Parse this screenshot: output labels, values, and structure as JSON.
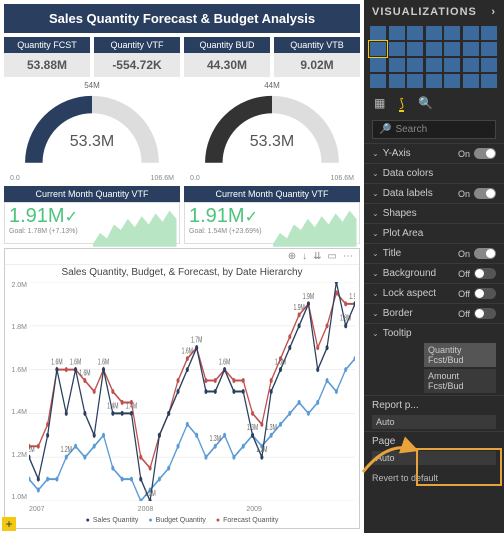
{
  "title": "Sales Quantity Forecast & Budget Analysis",
  "kpis": [
    {
      "label": "Quantity FCST",
      "value": "53.88M"
    },
    {
      "label": "Quantity VTF",
      "value": "-554.72K"
    },
    {
      "label": "Quantity BUD",
      "value": "44.30M"
    },
    {
      "label": "Quantity VTB",
      "value": "9.02M"
    }
  ],
  "gauges": [
    {
      "top": "54M",
      "value": "53.3M",
      "min": "0.0",
      "max": "106.6M",
      "arc_color": "#2a3f5f"
    },
    {
      "top": "44M",
      "value": "53.3M",
      "min": "0.0",
      "max": "106.6M",
      "arc_color": "#333333"
    }
  ],
  "vtf": [
    {
      "head": "Current Month Quantity VTF",
      "value": "1.91M",
      "goal": "Goal: 1.78M (+7.13%)"
    },
    {
      "head": "Current Month Quantity VTF",
      "value": "1.91M",
      "goal": "Goal: 1.54M (+23.69%)"
    }
  ],
  "linechart": {
    "title": "Sales Quantity, Budget, & Forecast, by Date Hierarchy",
    "y_ticks": [
      "2.0M",
      "1.8M",
      "1.6M",
      "1.4M",
      "1.2M",
      "1.0M"
    ],
    "x_ticks": [
      "2007",
      "2008",
      "2009"
    ],
    "ylim": [
      1.0,
      2.0
    ],
    "series": {
      "sales": {
        "color": "#2a3f5f",
        "label": "Sales Quantity",
        "values": [
          1.2,
          1.1,
          1.3,
          1.6,
          1.4,
          1.6,
          1.4,
          1.3,
          1.6,
          1.4,
          1.4,
          1.4,
          1.1,
          1.0,
          1.3,
          1.4,
          1.5,
          1.6,
          1.7,
          1.5,
          1.5,
          1.6,
          1.5,
          1.5,
          1.3,
          1.2,
          1.5,
          1.6,
          1.7,
          1.8,
          1.9,
          1.6,
          1.7,
          2.0,
          1.8,
          1.9
        ]
      },
      "budget": {
        "color": "#5b9bd5",
        "label": "Budget Quantity",
        "values": [
          1.1,
          1.05,
          1.1,
          1.1,
          1.2,
          1.25,
          1.2,
          1.25,
          1.3,
          1.15,
          1.1,
          1.1,
          1.0,
          1.05,
          1.1,
          1.15,
          1.25,
          1.35,
          1.3,
          1.2,
          1.25,
          1.3,
          1.2,
          1.25,
          1.3,
          1.25,
          1.3,
          1.35,
          1.4,
          1.45,
          1.4,
          1.45,
          1.55,
          1.5,
          1.6,
          1.65
        ]
      },
      "forecast": {
        "color": "#c0504d",
        "label": "Forecast Quantity",
        "values": [
          1.25,
          1.25,
          1.35,
          1.6,
          1.6,
          1.6,
          1.55,
          1.5,
          1.6,
          1.5,
          1.45,
          1.45,
          1.2,
          1.15,
          1.3,
          1.4,
          1.55,
          1.65,
          1.7,
          1.55,
          1.55,
          1.6,
          1.55,
          1.55,
          1.4,
          1.35,
          1.55,
          1.65,
          1.75,
          1.85,
          1.9,
          1.7,
          1.8,
          1.95,
          1.9,
          1.9
        ]
      }
    },
    "point_labels": [
      {
        "i": 3,
        "series": "sales",
        "text": "1.6M"
      },
      {
        "i": 5,
        "series": "sales",
        "text": "1.6M"
      },
      {
        "i": 8,
        "series": "sales",
        "text": "1.6M"
      },
      {
        "i": 0,
        "series": "sales",
        "text": "1.2M"
      },
      {
        "i": 13,
        "series": "sales",
        "text": "1.0M"
      },
      {
        "i": 18,
        "series": "sales",
        "text": "1.7M"
      },
      {
        "i": 17,
        "series": "forecast",
        "text": "1.6M"
      },
      {
        "i": 30,
        "series": "sales",
        "text": "1.9M"
      },
      {
        "i": 33,
        "series": "sales",
        "text": "2.0M"
      },
      {
        "i": 35,
        "series": "sales",
        "text": "1.9M"
      },
      {
        "i": 29,
        "series": "forecast",
        "text": "1.9M"
      },
      {
        "i": 6,
        "series": "forecast",
        "text": "1.6M"
      },
      {
        "i": 4,
        "series": "budget",
        "text": "1.2M"
      },
      {
        "i": 9,
        "series": "sales",
        "text": "1.4M"
      },
      {
        "i": 11,
        "series": "sales",
        "text": "1.4M"
      },
      {
        "i": 21,
        "series": "forecast",
        "text": "1.6M"
      },
      {
        "i": 26,
        "series": "budget",
        "text": "1.3M"
      },
      {
        "i": 20,
        "series": "budget",
        "text": "1.3M"
      },
      {
        "i": 25,
        "series": "sales",
        "text": "1.2M"
      },
      {
        "i": 24,
        "series": "sales",
        "text": "1.3M"
      },
      {
        "i": 27,
        "series": "sales",
        "text": "1.6M"
      },
      {
        "i": 34,
        "series": "sales",
        "text": "1.8M"
      }
    ]
  },
  "panel": {
    "title": "VISUALIZATIONS",
    "search": "Search",
    "props": [
      {
        "label": "Y-Axis",
        "state": "On",
        "on": true
      },
      {
        "label": "Data colors",
        "state": "",
        "on": null
      },
      {
        "label": "Data labels",
        "state": "On",
        "on": true
      },
      {
        "label": "Shapes",
        "state": "",
        "on": null
      },
      {
        "label": "Plot Area",
        "state": "",
        "on": null
      },
      {
        "label": "Title",
        "state": "On",
        "on": true
      },
      {
        "label": "Background",
        "state": "Off",
        "on": false
      },
      {
        "label": "Lock aspect",
        "state": "Off",
        "on": false
      },
      {
        "label": "Border",
        "state": "Off",
        "on": false
      },
      {
        "label": "Tooltip",
        "state": "",
        "on": null
      }
    ],
    "tooltip_opts": [
      "Quantity Fcst/Bud",
      "Amount Fcst/Bud"
    ],
    "report_p": {
      "label": "Report p...",
      "value": "Auto"
    },
    "page": {
      "label": "Page",
      "value": "Auto"
    },
    "revert": "Revert to default"
  }
}
